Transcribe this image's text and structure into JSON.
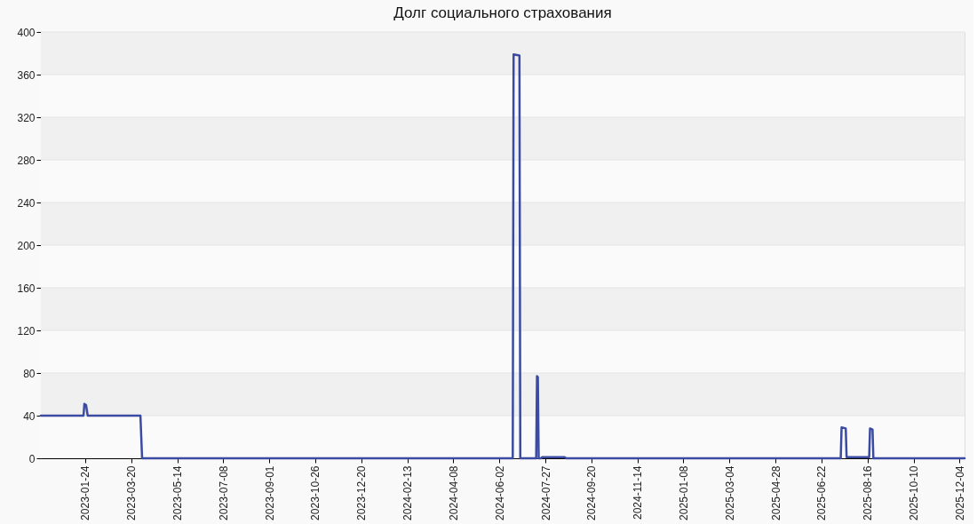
{
  "chart_data": {
    "type": "line",
    "title": "Долг социального страхования",
    "x": [
      "2022-12-02",
      "2023-01-22",
      "2023-01-23",
      "2023-01-25",
      "2023-01-27",
      "2023-03-31",
      "2023-04-02",
      "2024-06-18",
      "2024-06-19",
      "2024-06-26",
      "2024-06-27",
      "2024-07-16",
      "2024-07-17",
      "2024-07-18",
      "2024-07-19",
      "2024-07-22",
      "2024-07-23",
      "2024-08-19",
      "2024-08-21",
      "2025-07-15",
      "2025-07-16",
      "2025-07-21",
      "2025-07-22",
      "2025-08-18",
      "2025-08-19",
      "2025-08-22",
      "2025-08-23",
      "2025-12-10"
    ],
    "series": [
      {
        "color": "#3a4ba1",
        "values": [
          40,
          40,
          51,
          50,
          40,
          40,
          0,
          0,
          379,
          378,
          0,
          0,
          77,
          76,
          0,
          0,
          1,
          1,
          0,
          0,
          29,
          28,
          1,
          1,
          28,
          27,
          0,
          0
        ]
      }
    ],
    "xlim": [
      "2022-12-02",
      "2025-12-10"
    ],
    "xticks": [
      "2023-01-24",
      "2023-03-20",
      "2023-05-14",
      "2023-07-08",
      "2023-09-01",
      "2023-10-26",
      "2023-12-20",
      "2024-02-13",
      "2024-04-08",
      "2024-06-02",
      "2024-07-27",
      "2024-09-20",
      "2024-11-14",
      "2025-01-08",
      "2025-03-04",
      "2025-04-28",
      "2025-06-22",
      "2025-08-16",
      "2025-10-10",
      "2025-12-04"
    ],
    "ylim": [
      0,
      400
    ],
    "yticks": [
      0,
      40,
      80,
      120,
      160,
      200,
      240,
      280,
      320,
      360,
      400
    ],
    "grid": "y"
  }
}
